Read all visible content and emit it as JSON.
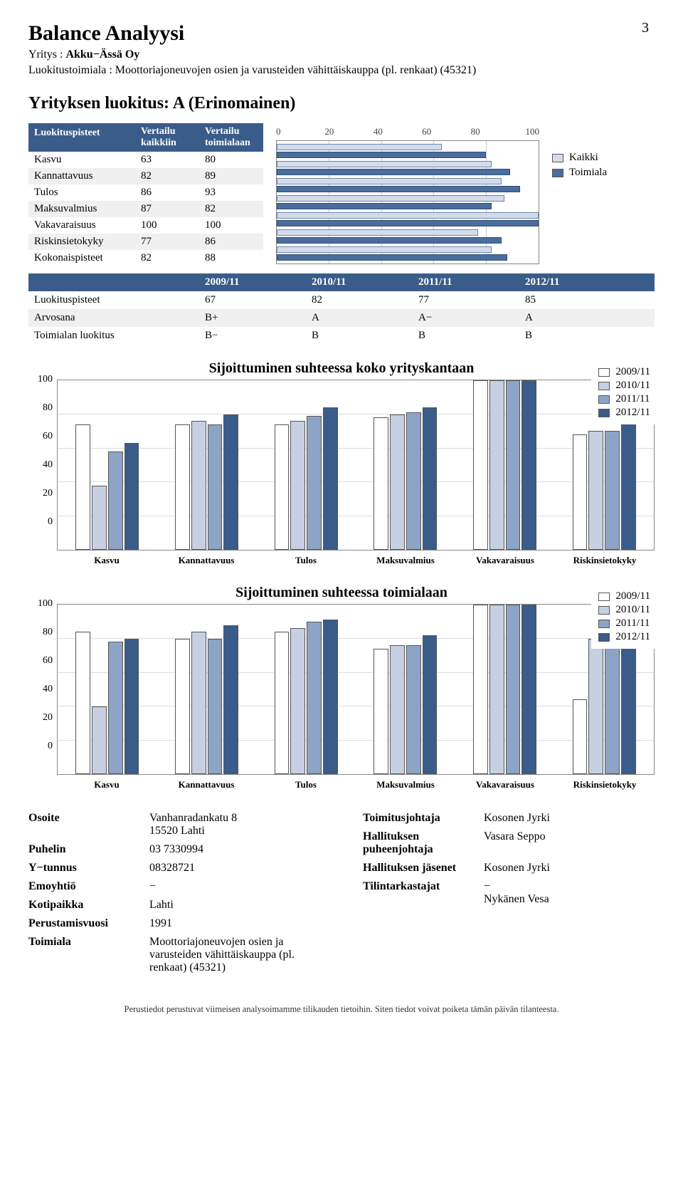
{
  "page_number": "3",
  "header": {
    "title": "Balance Analyysi",
    "company_label": "Yritys : ",
    "company": "Akku−Ässä Oy",
    "industry_label": "Luokitustoimiala : ",
    "industry": "Moottoriajoneuvojen osien ja varusteiden vähittäiskauppa (pl. renkaat) (45321)"
  },
  "rating_heading": "Yrityksen luokitus: A (Erinomainen)",
  "rating_table": {
    "col1": "Luokituspisteet",
    "col2a": "Vertailu",
    "col2b": "kaikkiin",
    "col3a": "Vertailu",
    "col3b": "toimialaan",
    "rows": [
      {
        "label": "Kasvu",
        "v1": "63",
        "v2": "80"
      },
      {
        "label": "Kannattavuus",
        "v1": "82",
        "v2": "89"
      },
      {
        "label": "Tulos",
        "v1": "86",
        "v2": "93"
      },
      {
        "label": "Maksuvalmius",
        "v1": "87",
        "v2": "82"
      },
      {
        "label": "Vakavaraisuus",
        "v1": "100",
        "v2": "100"
      },
      {
        "label": "Riskinsietokyky",
        "v1": "77",
        "v2": "86"
      },
      {
        "label": "Kokonaispisteet",
        "v1": "82",
        "v2": "88"
      }
    ]
  },
  "hbar": {
    "axis": [
      "0",
      "20",
      "40",
      "60",
      "80",
      "100"
    ],
    "colors": {
      "kaikki": "#d4dcec",
      "toimiala": "#4a6d9e"
    },
    "rows": [
      {
        "k": 63,
        "t": 80
      },
      {
        "k": 82,
        "t": 89
      },
      {
        "k": 86,
        "t": 93
      },
      {
        "k": 87,
        "t": 82
      },
      {
        "k": 100,
        "t": 100
      },
      {
        "k": 77,
        "t": 86
      },
      {
        "k": 82,
        "t": 88
      }
    ],
    "legend": [
      {
        "label": "Kaikki",
        "color": "#d4dcec"
      },
      {
        "label": "Toimiala",
        "color": "#4a6d9e"
      }
    ]
  },
  "history": {
    "years": [
      "2009/11",
      "2010/11",
      "2011/11",
      "2012/11"
    ],
    "rows": [
      {
        "label": "Luokituspisteet",
        "v": [
          "67",
          "82",
          "77",
          "85"
        ]
      },
      {
        "label": "Arvosana",
        "v": [
          "B+",
          "A",
          "A−",
          "A"
        ]
      },
      {
        "label": "Toimialan luokitus",
        "v": [
          "B−",
          "B",
          "B",
          "B"
        ]
      }
    ]
  },
  "charts": {
    "ymax": 100,
    "yticks": [
      "100",
      "80",
      "60",
      "40",
      "20",
      "0"
    ],
    "categories": [
      "Kasvu",
      "Kannattavuus",
      "Tulos",
      "Maksuvalmius",
      "Vakavaraisuus",
      "Riskinsietokyky"
    ],
    "series_colors": [
      "#ffffff",
      "#c7d0e2",
      "#8ea4c6",
      "#3a5c8a"
    ],
    "legend": [
      "2009/11",
      "2010/11",
      "2011/11",
      "2012/11"
    ],
    "chart1": {
      "title": "Sijoittuminen suhteessa koko yrityskantaan",
      "data": [
        [
          74,
          38,
          58,
          63
        ],
        [
          74,
          76,
          74,
          80
        ],
        [
          74,
          76,
          79,
          84
        ],
        [
          78,
          80,
          81,
          84
        ],
        [
          100,
          100,
          100,
          100
        ],
        [
          68,
          70,
          70,
          76
        ]
      ]
    },
    "chart2": {
      "title": "Sijoittuminen suhteessa toimialaan",
      "data": [
        [
          84,
          40,
          78,
          80
        ],
        [
          80,
          84,
          80,
          88
        ],
        [
          84,
          86,
          90,
          91
        ],
        [
          74,
          76,
          76,
          82
        ],
        [
          100,
          100,
          100,
          100
        ],
        [
          44,
          80,
          82,
          86
        ]
      ]
    }
  },
  "info_left": [
    {
      "label": "Osoite",
      "value": "Vanhanradankatu 8\n15520 Lahti"
    },
    {
      "label": "Puhelin",
      "value": "03 7330994"
    },
    {
      "label": "Y−tunnus",
      "value": "08328721"
    },
    {
      "label": "Emoyhtiö",
      "value": "−"
    },
    {
      "label": "Kotipaikka",
      "value": "Lahti"
    },
    {
      "label": "Perustamisvuosi",
      "value": "1991"
    },
    {
      "label": "Toimiala",
      "value": "Moottoriajoneuvojen osien ja varusteiden vähittäiskauppa (pl. renkaat) (45321)"
    }
  ],
  "info_right": [
    {
      "label": "Toimitusjohtaja",
      "value": "Kosonen Jyrki"
    },
    {
      "label": "Hallituksen puheenjohtaja",
      "value": "Vasara Seppo"
    },
    {
      "label": "Hallituksen jäsenet",
      "value": "Kosonen Jyrki"
    },
    {
      "label": "Tilintarkastajat",
      "value": "−\nNykänen Vesa"
    }
  ],
  "footer": "Perustiedot perustuvat viimeisen analysoimamme tilikauden tietoihin. Siten tiedot voivat poiketa tämän päivän tilanteesta."
}
